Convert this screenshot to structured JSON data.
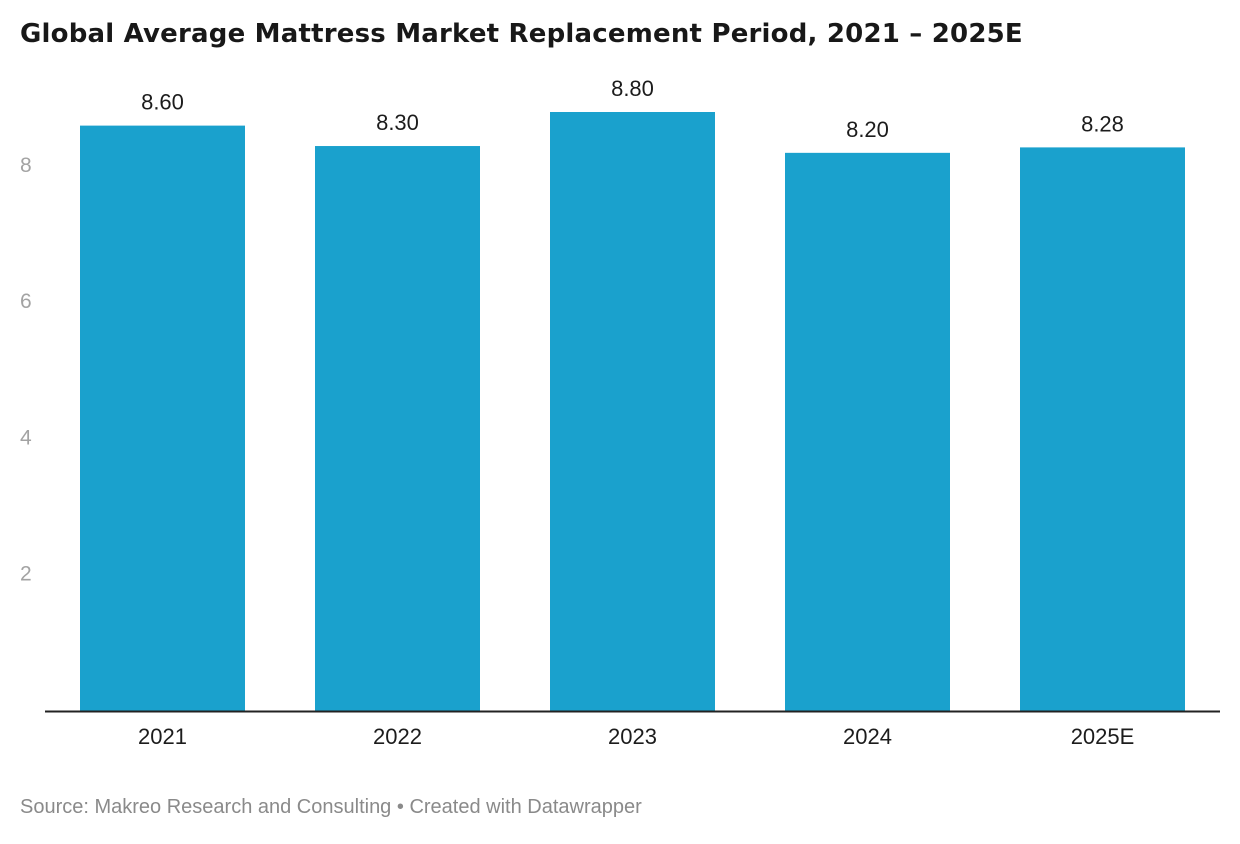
{
  "title": "Global Average Mattress Market Replacement Period, 2021 – 2025E",
  "footer": {
    "source": "Source: Makreo Research and Consulting",
    "separator": " • ",
    "credit": "Created with Datawrapper"
  },
  "colors": {
    "bar": "#1aa1cd",
    "axis_text": "#a3a3a3",
    "label_text": "#1c1c1c",
    "baseline": "#222222"
  },
  "chart_data": {
    "type": "bar",
    "categories": [
      "2021",
      "2022",
      "2023",
      "2024",
      "2025E"
    ],
    "values": [
      8.6,
      8.3,
      8.8,
      8.2,
      8.28
    ],
    "value_labels": [
      "8.60",
      "8.30",
      "8.80",
      "8.20",
      "8.28"
    ],
    "yticks": [
      2,
      4,
      6,
      8
    ],
    "ylim": [
      0,
      8.8
    ],
    "grid": false,
    "title": "Global Average Mattress Market Replacement Period, 2021 – 2025E",
    "xlabel": "",
    "ylabel": ""
  }
}
